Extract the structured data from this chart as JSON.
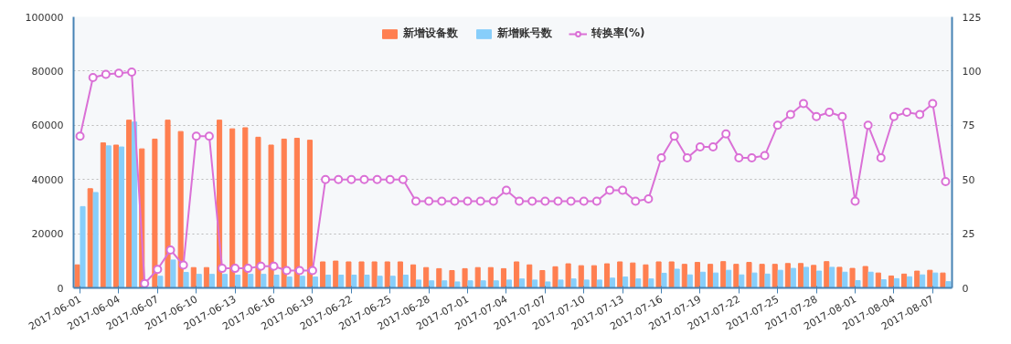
{
  "chart_data": {
    "type": "bar",
    "categories": [
      "2017-06-01",
      null,
      null,
      "2017-06-04",
      null,
      null,
      "2017-06-07",
      null,
      null,
      "2017-06-10",
      null,
      null,
      "2017-06-13",
      null,
      null,
      "2017-06-16",
      null,
      null,
      "2017-06-19",
      null,
      null,
      "2017-06-22",
      null,
      null,
      "2017-06-25",
      null,
      null,
      "2017-06-28",
      null,
      null,
      "2017-07-01",
      null,
      null,
      "2017-07-04",
      null,
      null,
      "2017-07-07",
      null,
      null,
      "2017-07-10",
      null,
      null,
      "2017-07-13",
      null,
      null,
      "2017-07-16",
      null,
      null,
      "2017-07-19",
      null,
      null,
      "2017-07-22",
      null,
      null,
      "2017-07-25",
      null,
      null,
      "2017-07-28",
      null,
      null,
      "2017-08-01",
      null,
      null,
      "2017-08-04",
      null,
      null,
      "2017-08-07",
      null
    ],
    "series": [
      {
        "name": "新增设备数",
        "color": "#ff7f50",
        "values": [
          8500,
          36600,
          53500,
          52700,
          61900,
          51300,
          54900,
          61900,
          57700,
          7500,
          7500,
          61900,
          58700,
          59100,
          55600,
          52700,
          54900,
          55200,
          54500,
          9600,
          9900,
          9600,
          9600,
          9600,
          9600,
          9600,
          8500,
          7500,
          7100,
          6400,
          7100,
          7500,
          7500,
          7100,
          9600,
          8500,
          6400,
          7800,
          8900,
          8200,
          8200,
          8900,
          9600,
          9200,
          8500,
          9600,
          9600,
          8700,
          9400,
          8700,
          9700,
          8700,
          9400,
          8700,
          8700,
          9000,
          9000,
          8300,
          9700,
          7600,
          7200,
          7900,
          5500,
          4400,
          5100,
          6200,
          6500,
          5500
        ]
      },
      {
        "name": "新增账号数",
        "color": "#87cefa",
        "values": [
          30000,
          35200,
          52400,
          52000,
          61200,
          null,
          4300,
          10300,
          5700,
          5000,
          5000,
          5000,
          4700,
          5000,
          5000,
          4700,
          4000,
          4300,
          4000,
          4700,
          4700,
          4700,
          4700,
          4300,
          4300,
          4700,
          2900,
          2600,
          2600,
          2200,
          2600,
          2600,
          2600,
          2900,
          3300,
          2900,
          2200,
          2900,
          3300,
          2900,
          2900,
          3600,
          4000,
          3300,
          3300,
          5400,
          6900,
          4800,
          5800,
          5500,
          6500,
          4800,
          5500,
          5100,
          6500,
          7200,
          7600,
          6200,
          7600,
          5800,
          2700,
          5800,
          3000,
          3400,
          4100,
          4800,
          5500,
          2300
        ]
      },
      {
        "name": "转换率(%)",
        "type": "line",
        "axis": "y2",
        "marker": "circle",
        "color": "#da70d6",
        "values": [
          70,
          97,
          98.5,
          99,
          99.5,
          2,
          8.5,
          17.5,
          10.5,
          70,
          70,
          9,
          9,
          9,
          10,
          10,
          8,
          8,
          8,
          50,
          50,
          50,
          50,
          50,
          50,
          50,
          40,
          40,
          40,
          40,
          40,
          40,
          40,
          45,
          40,
          40,
          40,
          40,
          40,
          40,
          40,
          45,
          45,
          40,
          41,
          60,
          70,
          60,
          65,
          65,
          71,
          60,
          60,
          61,
          75,
          80,
          85,
          79,
          81,
          79,
          40,
          75,
          60,
          79,
          81,
          80,
          85,
          49
        ]
      }
    ],
    "ylim": [
      0,
      100000
    ],
    "yticks": [
      0,
      20000,
      40000,
      60000,
      80000,
      100000
    ],
    "y2lim": [
      0,
      125
    ],
    "y2ticks": [
      0,
      25,
      50,
      75,
      100,
      125
    ],
    "grid": "y",
    "legend": "top"
  }
}
